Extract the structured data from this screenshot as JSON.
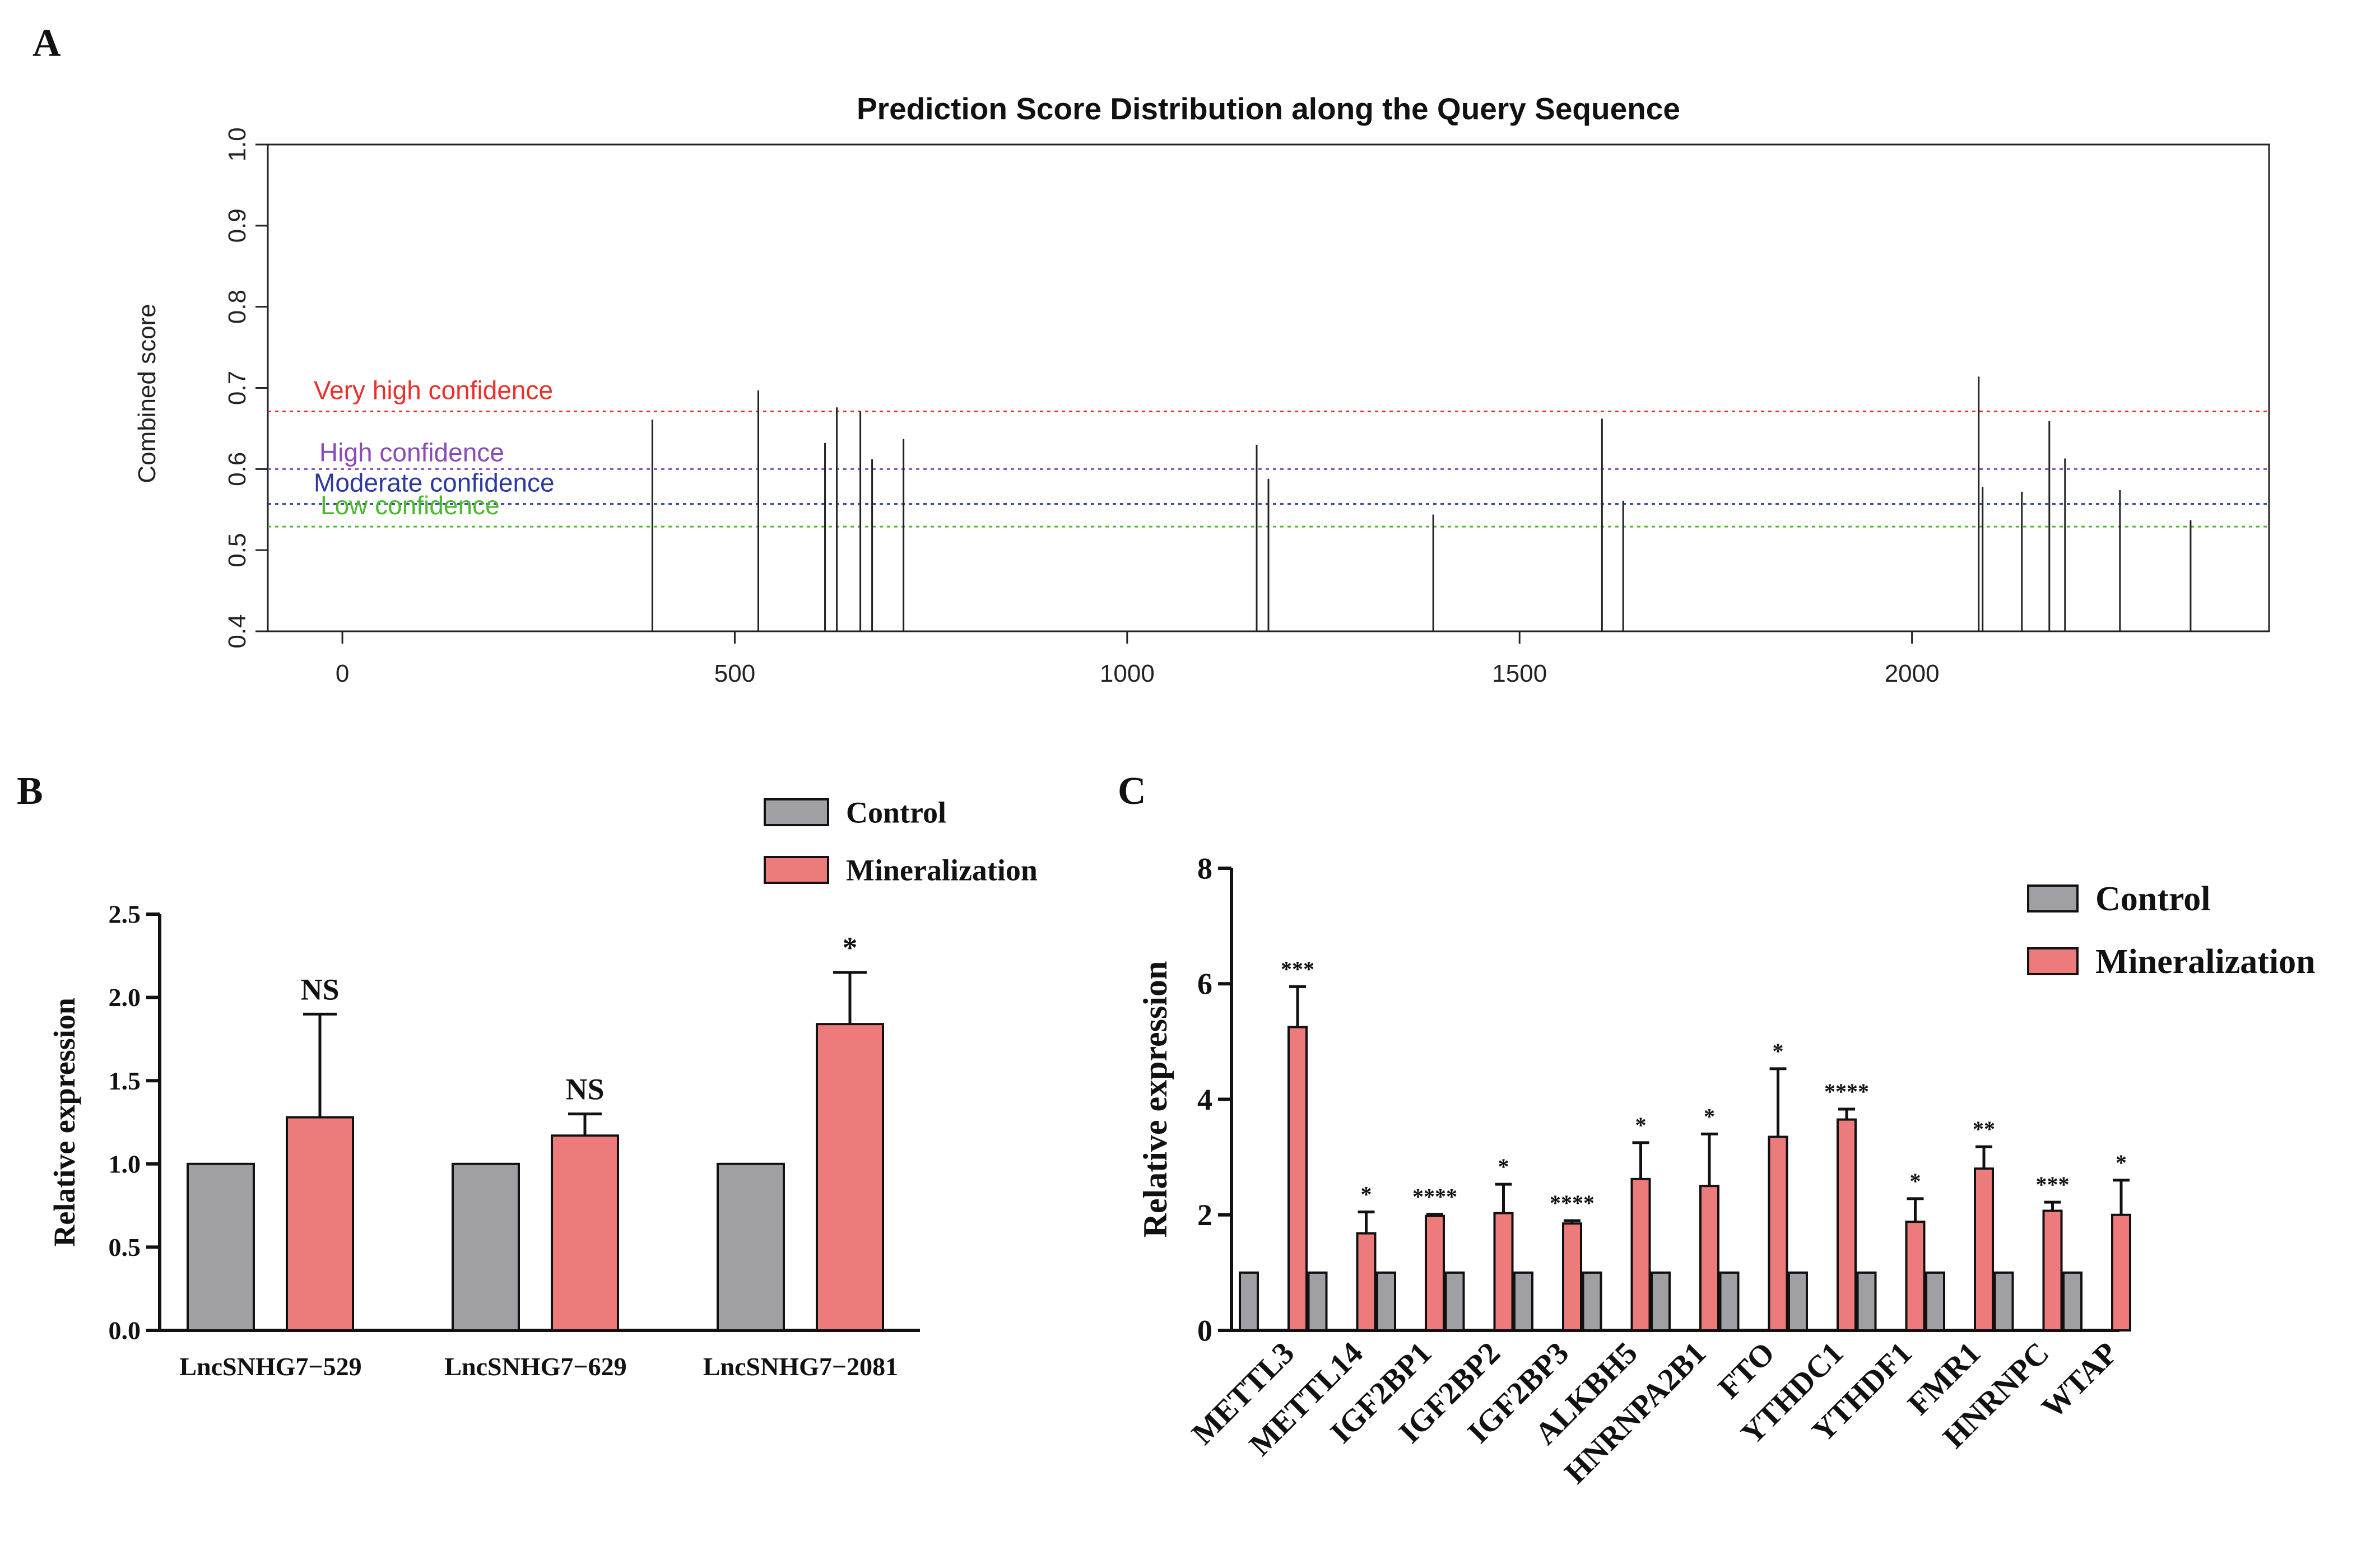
{
  "panels": {
    "a_letter": "A",
    "b_letter": "B",
    "c_letter": "C"
  },
  "chart_data": [
    {
      "id": "A",
      "type": "bar",
      "subtype": "stem",
      "title": "Prediction Score Distribution along the Query Sequence",
      "xlabel": "",
      "ylabel": "Combined score",
      "xlim": [
        -95,
        2455
      ],
      "ylim": [
        0.4,
        1.0
      ],
      "xticks": [
        0,
        500,
        1000,
        1500,
        2000
      ],
      "yticks": [
        "0.4",
        "0.5",
        "0.6",
        "0.7",
        "0.8",
        "0.9",
        "1.0"
      ],
      "thresholds": [
        {
          "label": "Very high confidence",
          "value": 0.671,
          "color": "#e8312b"
        },
        {
          "label": "High confidence",
          "value": 0.6,
          "color": "#8a4ab7"
        },
        {
          "label": "Moderate confidence",
          "value": 0.557,
          "color": "#2b3aa0"
        },
        {
          "label": "Low confidence",
          "value": 0.529,
          "color": "#4cb82e"
        }
      ],
      "stems": [
        {
          "x": 395,
          "y": 0.661
        },
        {
          "x": 530,
          "y": 0.697
        },
        {
          "x": 615,
          "y": 0.632
        },
        {
          "x": 630,
          "y": 0.676
        },
        {
          "x": 660,
          "y": 0.671
        },
        {
          "x": 675,
          "y": 0.612
        },
        {
          "x": 715,
          "y": 0.637
        },
        {
          "x": 1165,
          "y": 0.63
        },
        {
          "x": 1180,
          "y": 0.588
        },
        {
          "x": 1390,
          "y": 0.544
        },
        {
          "x": 1605,
          "y": 0.662
        },
        {
          "x": 1632,
          "y": 0.561
        },
        {
          "x": 2085,
          "y": 0.714
        },
        {
          "x": 2090,
          "y": 0.578
        },
        {
          "x": 2140,
          "y": 0.572
        },
        {
          "x": 2175,
          "y": 0.659
        },
        {
          "x": 2195,
          "y": 0.613
        },
        {
          "x": 2265,
          "y": 0.574
        },
        {
          "x": 2355,
          "y": 0.537
        }
      ]
    },
    {
      "id": "B",
      "type": "bar",
      "title": "",
      "xlabel": "",
      "ylabel": "Relative expression",
      "ylim": [
        0,
        2.5
      ],
      "yticks": [
        "0.0",
        "0.5",
        "1.0",
        "1.5",
        "2.0",
        "2.5"
      ],
      "categories": [
        "LncSNHG7−529",
        "LncSNHG7−629",
        "LncSNHG7−2081"
      ],
      "series": [
        {
          "name": "Control",
          "color": "#a0a0a4",
          "values": [
            1.0,
            1.0,
            1.0
          ],
          "errors": [
            0,
            0,
            0
          ]
        },
        {
          "name": "Mineralization",
          "color": "#ee7b7b",
          "values": [
            1.28,
            1.17,
            1.84
          ],
          "errors": [
            0.62,
            0.13,
            0.31
          ]
        }
      ],
      "significance": [
        "NS",
        "NS",
        "*"
      ],
      "legend": "top-right"
    },
    {
      "id": "C",
      "type": "bar",
      "title": "",
      "xlabel": "",
      "ylabel": "Relative expression",
      "ylim": [
        0,
        8
      ],
      "yticks": [
        "0",
        "2",
        "4",
        "6",
        "8"
      ],
      "categories": [
        "METTL3",
        "METTL14",
        "IGF2BP1",
        "IGF2BP2",
        "IGF2BP3",
        "ALKBH5",
        "HNRNPA2B1",
        "FTO",
        "YTHDC1",
        "YTHDF1",
        "FMR1",
        "HNRNPC",
        "WTAP"
      ],
      "series": [
        {
          "name": "Control",
          "color": "#a0a0a4",
          "values": [
            1,
            1,
            1,
            1,
            1,
            1,
            1,
            1,
            1,
            1,
            1,
            1,
            1
          ],
          "errors": [
            0,
            0,
            0,
            0,
            0,
            0,
            0,
            0,
            0,
            0,
            0,
            0,
            0
          ]
        },
        {
          "name": "Mineralization",
          "color": "#ee7b7b",
          "values": [
            5.25,
            1.68,
            1.98,
            2.03,
            1.85,
            2.62,
            2.5,
            3.35,
            3.65,
            1.88,
            2.8,
            2.07,
            2.0
          ],
          "errors": [
            0.7,
            0.37,
            0.03,
            0.5,
            0.05,
            0.63,
            0.9,
            1.18,
            0.18,
            0.4,
            0.38,
            0.15,
            0.6
          ]
        }
      ],
      "significance": [
        "***",
        "*",
        "****",
        "*",
        "****",
        "*",
        "*",
        "*",
        "****",
        "*",
        "**",
        "***",
        "*"
      ],
      "legend": "top-right"
    }
  ]
}
